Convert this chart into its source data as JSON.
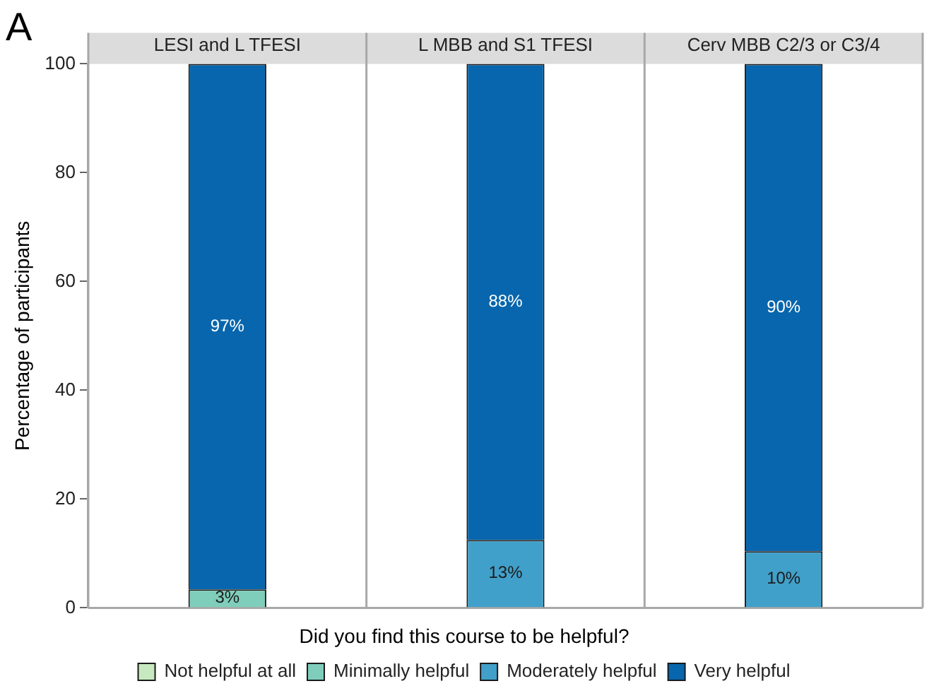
{
  "chart_data": {
    "type": "bar",
    "title": "A",
    "ylabel": "Percentage of participants",
    "legend_title": "Did you find this course to be helpful?",
    "categories": [
      "LESI and L TFESI",
      "L MBB and S1 TFESI",
      "Cerv MBB C2/3 or C3/4"
    ],
    "stacked": true,
    "ylim": [
      0,
      100
    ],
    "yticks": [
      0,
      20,
      40,
      60,
      80,
      100
    ],
    "grid": false,
    "legend": "bottom",
    "series": [
      {
        "name": "Not helpful at all",
        "color": "#c7e9c0",
        "values": [
          null,
          null,
          null
        ],
        "value_labels": [
          null,
          null,
          null
        ]
      },
      {
        "name": "Minimally helpful",
        "color": "#7fcdbb",
        "values": [
          3.4,
          null,
          null
        ],
        "value_labels": [
          "3%",
          null,
          null
        ]
      },
      {
        "name": "Moderately helpful",
        "color": "#41a0c9",
        "values": [
          null,
          12.5,
          10.4
        ],
        "value_labels": [
          null,
          "13%",
          "10%"
        ]
      },
      {
        "name": "Very helpful",
        "color": "#0766ad",
        "values": [
          96.6,
          87.5,
          89.6
        ],
        "value_labels": [
          "97%",
          "88%",
          "90%"
        ]
      }
    ]
  }
}
